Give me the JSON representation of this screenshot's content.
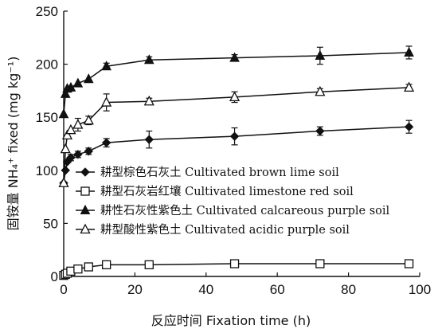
{
  "chart_data": {
    "type": "line",
    "xlabel": "反应时间 Fixation time (h)",
    "ylabel": "固铵量 NH₄⁺ fixed (mg kg⁻¹)",
    "xlim": [
      0,
      100
    ],
    "ylim": [
      0,
      250
    ],
    "xticks": [
      "0",
      "20",
      "40",
      "60",
      "80",
      "100"
    ],
    "yticks": [
      "0",
      "50",
      "100",
      "150",
      "200",
      "250"
    ],
    "grid": false,
    "legend_position": "center-left",
    "series": [
      {
        "name": "耕型棕色石灰土 Cultivated brown lime soil",
        "marker": "diamond-filled",
        "x": [
          0,
          0.5,
          1,
          2,
          4,
          7,
          12,
          24,
          48,
          72,
          97
        ],
        "y": [
          88,
          100,
          108,
          112,
          115,
          118,
          126,
          129,
          132,
          137,
          141
        ],
        "err": [
          0,
          0,
          0,
          3,
          3,
          3,
          4,
          8,
          8,
          4,
          6
        ]
      },
      {
        "name": "耕型石灰岩红壤 Cultivated limestone red soil",
        "marker": "square-open",
        "x": [
          0,
          0.5,
          1,
          2,
          4,
          7,
          12,
          24,
          48,
          72,
          97
        ],
        "y": [
          1,
          2,
          3,
          5,
          7,
          9,
          11,
          11,
          12,
          12,
          12
        ],
        "err": [
          0,
          0,
          0,
          0,
          0,
          0,
          0,
          0,
          0,
          0,
          0
        ]
      },
      {
        "name": "耕性石灰性紫色土 Cultivated calcareous purple soil",
        "marker": "triangle-filled",
        "x": [
          0,
          0.5,
          1,
          2,
          4,
          7,
          12,
          24,
          48,
          72,
          97
        ],
        "y": [
          153,
          172,
          177,
          178,
          182,
          186,
          198,
          204,
          206,
          208,
          211
        ],
        "err": [
          0,
          0,
          0,
          0,
          0,
          0,
          3,
          3,
          3,
          8,
          6
        ]
      },
      {
        "name": "耕型酸性紫色土 Cultivated acidic purple soil",
        "marker": "triangle-open",
        "x": [
          0,
          0.5,
          1,
          2,
          4,
          7,
          12,
          24,
          48,
          72,
          97
        ],
        "y": [
          88,
          120,
          133,
          138,
          143,
          147,
          164,
          165,
          169,
          174,
          178
        ],
        "err": [
          0,
          0,
          0,
          0,
          6,
          4,
          8,
          3,
          5,
          3,
          3
        ]
      }
    ]
  }
}
